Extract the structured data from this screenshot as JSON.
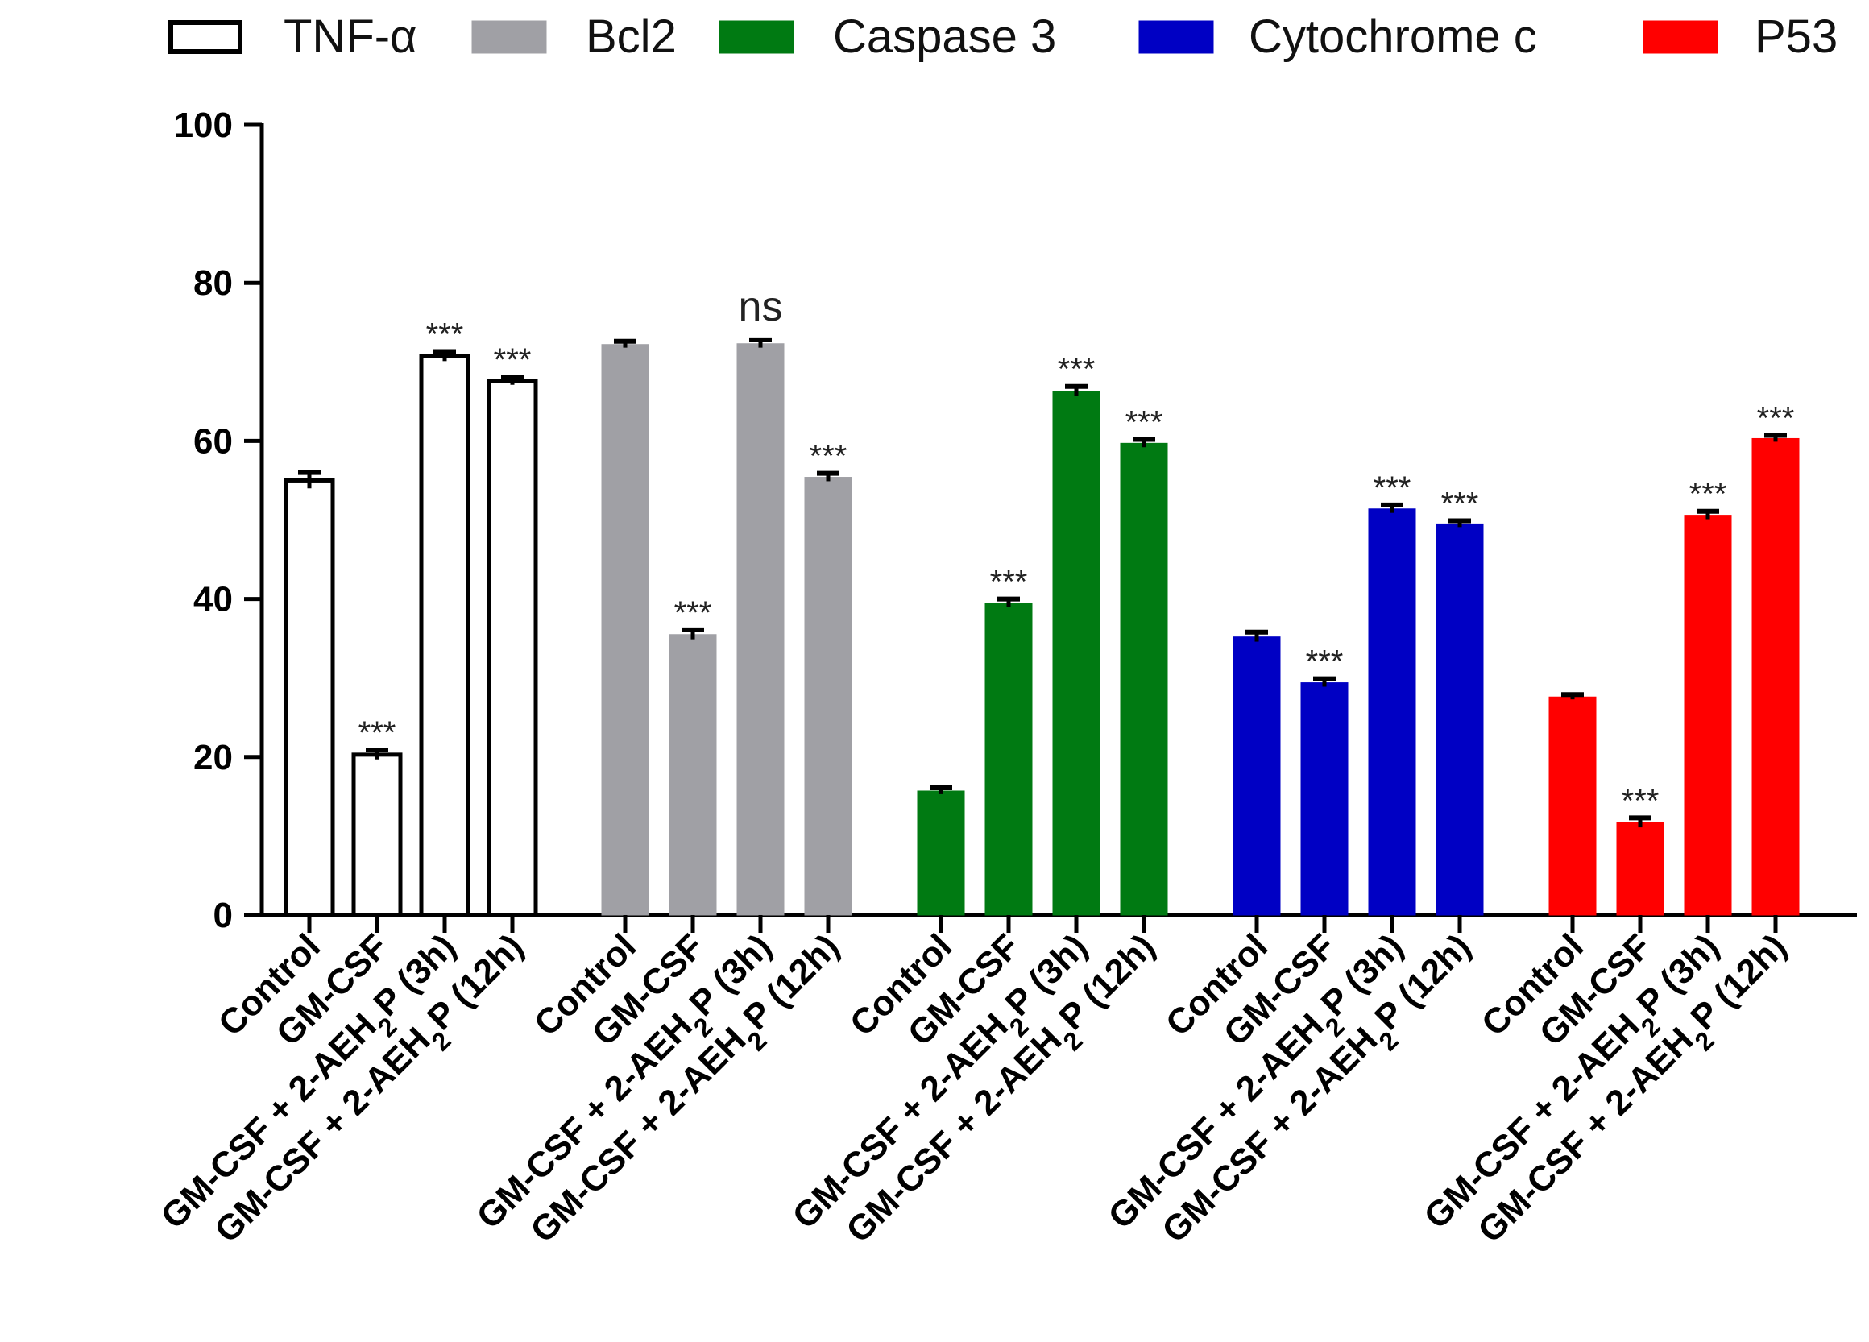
{
  "chart_data": {
    "type": "bar",
    "title": "",
    "xlabel": "",
    "ylabel": "",
    "ylim": [
      0,
      100
    ],
    "yticks": [
      "0",
      "20",
      "40",
      "60",
      "80",
      "100"
    ],
    "legend_position": "top",
    "grid": false,
    "categories": [
      "Control",
      "GM-CSF",
      "GM-CSF + 2-AEH2P (3h)",
      "GM-CSF + 2-AEH2P (12h)"
    ],
    "category_label_parts": [
      {
        "pre": "Control",
        "sub": "",
        "post": ""
      },
      {
        "pre": "GM-CSF",
        "sub": "",
        "post": ""
      },
      {
        "pre": "GM-CSF + 2-AEH",
        "sub": "2",
        "post": "P (3h)"
      },
      {
        "pre": "GM-CSF + 2-AEH",
        "sub": "2",
        "post": "P (12h)"
      }
    ],
    "series": [
      {
        "name": "TNF-α",
        "color": "#ffffff",
        "stroke": "#000000",
        "values": [
          55,
          20.3,
          70.7,
          67.6
        ],
        "errors": [
          1.0,
          0.6,
          0.6,
          0.5
        ],
        "significance": [
          "",
          "***",
          "***",
          "***"
        ]
      },
      {
        "name": "Bcl2",
        "color": "#a0a0a5",
        "stroke": "#a0a0a5",
        "values": [
          72.2,
          35.5,
          72.3,
          55.4
        ],
        "errors": [
          0.4,
          0.6,
          0.5,
          0.5
        ],
        "significance": [
          "",
          "***",
          "ns",
          "***"
        ]
      },
      {
        "name": "Caspase 3",
        "color": "#007a12",
        "stroke": "#007a12",
        "values": [
          15.7,
          39.5,
          66.3,
          59.7
        ],
        "errors": [
          0.4,
          0.5,
          0.6,
          0.5
        ],
        "significance": [
          "",
          "***",
          "***",
          "***"
        ]
      },
      {
        "name": "Cytochrome c",
        "color": "#0000c4",
        "stroke": "#0000c4",
        "values": [
          35.2,
          29.4,
          51.4,
          49.5
        ],
        "errors": [
          0.6,
          0.5,
          0.5,
          0.4
        ],
        "significance": [
          "",
          "***",
          "***",
          "***"
        ]
      },
      {
        "name": "P53",
        "color": "#ff0000",
        "stroke": "#ff0000",
        "values": [
          27.6,
          11.7,
          50.6,
          60.3
        ],
        "errors": [
          0.3,
          0.6,
          0.5,
          0.4
        ],
        "significance": [
          "",
          "***",
          "***",
          "***"
        ]
      }
    ]
  }
}
